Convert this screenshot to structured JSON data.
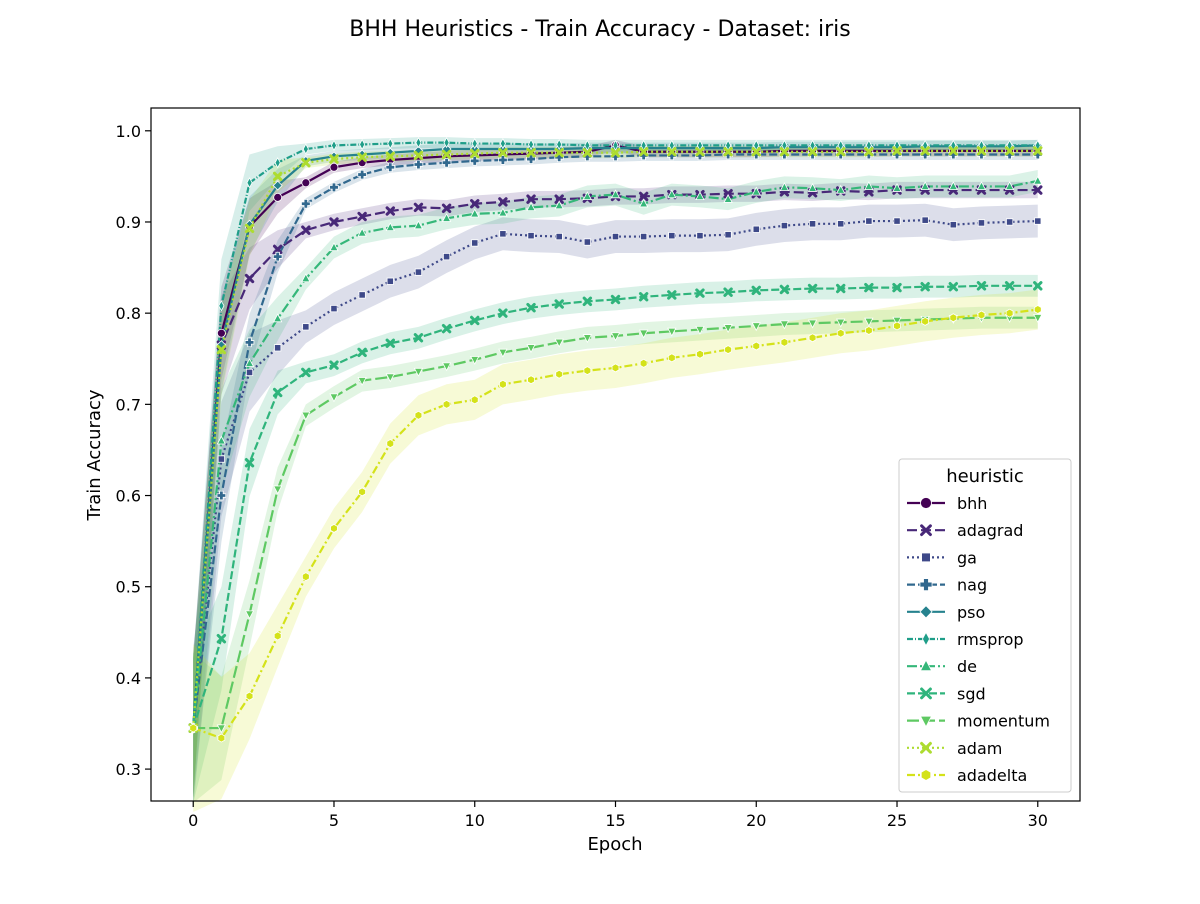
{
  "chart_data": {
    "type": "line",
    "title": "BHH Heuristics - Train Accuracy - Dataset: iris",
    "xlabel": "Epoch",
    "ylabel": "Train Accuracy",
    "xlim": [
      -1.5,
      31.5
    ],
    "ylim": [
      0.265,
      1.025
    ],
    "xticks": [
      0,
      5,
      10,
      15,
      20,
      25,
      30
    ],
    "yticks": [
      0.3,
      0.4,
      0.5,
      0.6,
      0.7,
      0.8,
      0.9,
      1.0
    ],
    "ytick_labels": [
      "0.3",
      "0.4",
      "0.5",
      "0.6",
      "0.7",
      "0.8",
      "0.9",
      "1.0"
    ],
    "grid": false,
    "legend": {
      "title": "heuristic",
      "placement": "lower-right"
    },
    "series": [
      {
        "name": "bhh",
        "color": "#440154",
        "marker": "circle",
        "dash": "",
        "band": 0.006,
        "values": [
          0.345,
          0.778,
          0.895,
          0.927,
          0.943,
          0.96,
          0.965,
          0.968,
          0.97,
          0.972,
          0.973,
          0.974,
          0.975,
          0.976,
          0.977,
          0.984,
          0.977,
          0.977,
          0.977,
          0.977,
          0.977,
          0.978,
          0.978,
          0.978,
          0.978,
          0.978,
          0.978,
          0.978,
          0.978,
          0.978,
          0.978
        ]
      },
      {
        "name": "adagrad",
        "color": "#482878",
        "marker": "x",
        "dash": "10 4",
        "band": 0.009,
        "values": [
          0.345,
          0.765,
          0.838,
          0.87,
          0.891,
          0.9,
          0.906,
          0.912,
          0.916,
          0.915,
          0.92,
          0.922,
          0.925,
          0.925,
          0.926,
          0.928,
          0.928,
          0.93,
          0.93,
          0.931,
          0.931,
          0.933,
          0.932,
          0.934,
          0.933,
          0.935,
          0.935,
          0.935,
          0.935,
          0.935,
          0.935
        ]
      },
      {
        "name": "ga",
        "color": "#3e4989",
        "marker": "square",
        "dash": "2 3",
        "band": 0.018,
        "values": [
          0.345,
          0.64,
          0.735,
          0.762,
          0.785,
          0.805,
          0.82,
          0.835,
          0.845,
          0.862,
          0.877,
          0.887,
          0.885,
          0.884,
          0.878,
          0.884,
          0.884,
          0.885,
          0.885,
          0.886,
          0.892,
          0.896,
          0.898,
          0.898,
          0.901,
          0.901,
          0.902,
          0.897,
          0.899,
          0.9,
          0.901
        ]
      },
      {
        "name": "nag",
        "color": "#31688e",
        "marker": "plus",
        "dash": "8 3",
        "band": 0.006,
        "values": [
          0.345,
          0.6,
          0.768,
          0.862,
          0.92,
          0.938,
          0.952,
          0.96,
          0.963,
          0.965,
          0.967,
          0.968,
          0.969,
          0.971,
          0.972,
          0.972,
          0.973,
          0.973,
          0.973,
          0.974,
          0.974,
          0.974,
          0.974,
          0.974,
          0.974,
          0.974,
          0.974,
          0.974,
          0.974,
          0.974,
          0.974
        ]
      },
      {
        "name": "pso",
        "color": "#26828e",
        "marker": "diamond",
        "dash": "",
        "band": 0.006,
        "values": [
          0.345,
          0.765,
          0.897,
          0.94,
          0.967,
          0.972,
          0.974,
          0.976,
          0.978,
          0.98,
          0.98,
          0.98,
          0.98,
          0.98,
          0.981,
          0.981,
          0.981,
          0.981,
          0.981,
          0.981,
          0.981,
          0.982,
          0.982,
          0.982,
          0.982,
          0.982,
          0.983,
          0.983,
          0.983,
          0.983,
          0.984
        ]
      },
      {
        "name": "rmsprop",
        "color": "#1f9e89",
        "marker": "thin-diamond",
        "dash": "6 2 1 2",
        "band": 0.006,
        "values": [
          0.345,
          0.808,
          0.943,
          0.965,
          0.98,
          0.984,
          0.985,
          0.986,
          0.987,
          0.987,
          0.986,
          0.986,
          0.985,
          0.985,
          0.984,
          0.984,
          0.984,
          0.984,
          0.984,
          0.984,
          0.984,
          0.984,
          0.984,
          0.984,
          0.984,
          0.984,
          0.984,
          0.984,
          0.984,
          0.984,
          0.984
        ]
      },
      {
        "name": "de",
        "color": "#35b779",
        "marker": "triangle-up",
        "dash": "10 3 2 3",
        "band": 0.012,
        "values": [
          0.345,
          0.66,
          0.745,
          0.794,
          0.838,
          0.872,
          0.888,
          0.894,
          0.896,
          0.904,
          0.909,
          0.91,
          0.916,
          0.918,
          0.928,
          0.93,
          0.92,
          0.93,
          0.928,
          0.925,
          0.933,
          0.938,
          0.937,
          0.935,
          0.939,
          0.937,
          0.939,
          0.939,
          0.939,
          0.939,
          0.945
        ]
      },
      {
        "name": "sgd",
        "color": "#2fb47c",
        "marker": "x",
        "dash": "8 3",
        "band": 0.012,
        "values": [
          0.345,
          0.443,
          0.636,
          0.713,
          0.735,
          0.743,
          0.757,
          0.767,
          0.773,
          0.783,
          0.792,
          0.8,
          0.806,
          0.81,
          0.813,
          0.815,
          0.818,
          0.82,
          0.822,
          0.823,
          0.825,
          0.826,
          0.827,
          0.827,
          0.828,
          0.828,
          0.829,
          0.829,
          0.83,
          0.83,
          0.83
        ]
      },
      {
        "name": "momentum",
        "color": "#5ec962",
        "marker": "triangle-down",
        "dash": "12 4",
        "band": 0.012,
        "values": [
          0.345,
          0.345,
          0.47,
          0.607,
          0.688,
          0.708,
          0.726,
          0.73,
          0.736,
          0.742,
          0.749,
          0.757,
          0.762,
          0.768,
          0.773,
          0.775,
          0.778,
          0.78,
          0.782,
          0.784,
          0.786,
          0.788,
          0.789,
          0.79,
          0.791,
          0.792,
          0.793,
          0.794,
          0.795,
          0.795,
          0.795
        ]
      },
      {
        "name": "adam",
        "color": "#addc30",
        "marker": "x",
        "dash": "2 3",
        "band": 0.006,
        "values": [
          0.345,
          0.76,
          0.893,
          0.95,
          0.965,
          0.969,
          0.971,
          0.972,
          0.973,
          0.974,
          0.975,
          0.976,
          0.976,
          0.976,
          0.976,
          0.976,
          0.977,
          0.977,
          0.977,
          0.977,
          0.977,
          0.977,
          0.977,
          0.977,
          0.977,
          0.978,
          0.978,
          0.978,
          0.978,
          0.978,
          0.978
        ]
      },
      {
        "name": "adadelta",
        "color": "#d4e21a",
        "marker": "hexagon",
        "dash": "8 3 2 3",
        "band": 0.022,
        "values": [
          0.345,
          0.334,
          0.38,
          0.446,
          0.511,
          0.564,
          0.604,
          0.657,
          0.688,
          0.7,
          0.705,
          0.722,
          0.727,
          0.733,
          0.737,
          0.74,
          0.745,
          0.751,
          0.755,
          0.76,
          0.764,
          0.768,
          0.773,
          0.778,
          0.781,
          0.786,
          0.791,
          0.795,
          0.798,
          0.8,
          0.804
        ]
      }
    ]
  }
}
